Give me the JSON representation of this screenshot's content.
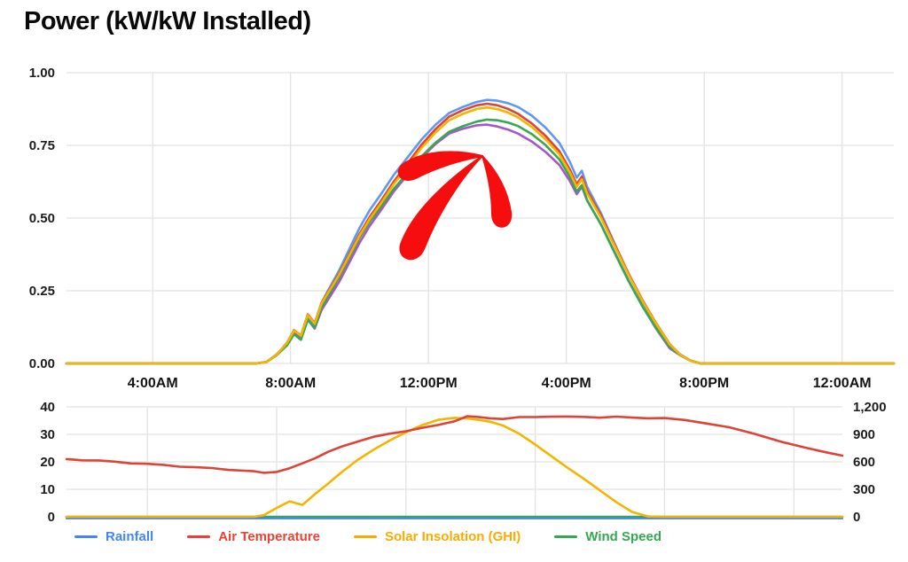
{
  "title": "Power (kW/kW Installed)",
  "colors": {
    "grid": "#e1e3e1",
    "arrow": "#f60d0d",
    "background": "#ffffff"
  },
  "x_axis": {
    "domain_hours": [
      1.5,
      25.5
    ],
    "ticks": [
      {
        "hour": 4,
        "label": "4:00AM"
      },
      {
        "hour": 8,
        "label": "8:00AM"
      },
      {
        "hour": 12,
        "label": "12:00PM"
      },
      {
        "hour": 16,
        "label": "4:00PM"
      },
      {
        "hour": 20,
        "label": "8:00PM"
      },
      {
        "hour": 24,
        "label": "12:00AM"
      }
    ]
  },
  "chart_data": [
    {
      "type": "line",
      "name": "power",
      "title": "Power (kW/kW Installed)",
      "ylim": [
        0,
        1.0
      ],
      "grid": true,
      "yticks": [
        {
          "value": 1.0,
          "label": "1.00"
        },
        {
          "value": 0.75,
          "label": "0.75"
        },
        {
          "value": 0.5,
          "label": "0.50"
        },
        {
          "value": 0.25,
          "label": "0.25"
        },
        {
          "value": 0.0,
          "label": "0.00"
        }
      ],
      "x_hours": [
        1.5,
        2,
        3,
        4,
        5,
        6,
        6.5,
        7,
        7.3,
        7.6,
        7.9,
        8.1,
        8.3,
        8.5,
        8.7,
        8.9,
        9.1,
        9.4,
        9.7,
        10,
        10.3,
        10.6,
        11,
        11.4,
        11.8,
        12.2,
        12.6,
        13,
        13.4,
        13.7,
        14,
        14.3,
        14.6,
        15,
        15.4,
        15.8,
        16.1,
        16.3,
        16.45,
        16.6,
        17,
        17.4,
        17.8,
        18.2,
        18.6,
        19,
        19.3,
        19.6,
        19.9,
        20.3,
        21,
        22,
        23,
        24.5,
        25.5
      ],
      "base_values": [
        0,
        0,
        0,
        0,
        0,
        0,
        0,
        0,
        0.005,
        0.03,
        0.07,
        0.11,
        0.09,
        0.16,
        0.13,
        0.2,
        0.24,
        0.3,
        0.37,
        0.44,
        0.5,
        0.55,
        0.62,
        0.68,
        0.74,
        0.79,
        0.83,
        0.85,
        0.865,
        0.87,
        0.865,
        0.855,
        0.84,
        0.81,
        0.77,
        0.72,
        0.66,
        0.61,
        0.635,
        0.585,
        0.5,
        0.4,
        0.3,
        0.21,
        0.13,
        0.06,
        0.03,
        0.01,
        0,
        0,
        0,
        0,
        0,
        0,
        0
      ],
      "series": [
        {
          "name": "power-blue",
          "color": "#5e97f6",
          "scale": 1.045,
          "peak": 0.91
        },
        {
          "name": "power-red",
          "color": "#db4437",
          "scale": 1.02,
          "peak": 0.89
        },
        {
          "name": "power-purple",
          "color": "#a855c8",
          "scale": 0.948,
          "peak": 0.82
        },
        {
          "name": "power-green",
          "color": "#34a853",
          "scale": 0.967,
          "peak": 0.84
        },
        {
          "name": "power-orange",
          "color": "#f5b400",
          "scale": 1.005,
          "peak": 0.87
        }
      ]
    },
    {
      "type": "line",
      "name": "weather",
      "left_axis": {
        "lim": [
          0,
          40
        ],
        "ticks": [
          {
            "value": 40,
            "label": "40"
          },
          {
            "value": 30,
            "label": "30"
          },
          {
            "value": 20,
            "label": "20"
          },
          {
            "value": 10,
            "label": "10"
          },
          {
            "value": 0,
            "label": "0"
          }
        ]
      },
      "right_axis": {
        "lim": [
          0,
          1200
        ],
        "ticks": [
          {
            "value": 1200,
            "label": "1,200"
          },
          {
            "value": 900,
            "label": "900"
          },
          {
            "value": 600,
            "label": "600"
          },
          {
            "value": 300,
            "label": "300"
          },
          {
            "value": 0,
            "label": "0"
          }
        ]
      },
      "x_hours": [
        1.5,
        2,
        2.5,
        3,
        3.5,
        4,
        4.5,
        5,
        5.5,
        6,
        6.5,
        7,
        7.3,
        7.6,
        8,
        8.4,
        8.8,
        9.2,
        9.6,
        10,
        10.5,
        11,
        11.5,
        12,
        12.5,
        13,
        13.5,
        13.9,
        14.2,
        14.6,
        15,
        15.5,
        16,
        16.5,
        17,
        17.5,
        18,
        18.5,
        19,
        19.5,
        20,
        20.6,
        21.2,
        22,
        22.8,
        23.6,
        24.4,
        25,
        25.5
      ],
      "series": [
        {
          "name": "Wind Speed",
          "color": "#34a853",
          "axis": "left",
          "constant": 0
        },
        {
          "name": "Rainfall",
          "color": "#4285f4",
          "axis": "left",
          "constant": 0
        },
        {
          "name": "Solar Insolation (GHI)",
          "color": "#f5b400",
          "axis": "right",
          "values": [
            0,
            0,
            0,
            0,
            0,
            0,
            0,
            0,
            0,
            0,
            0,
            0,
            0,
            20,
            90,
            160,
            130,
            260,
            370,
            480,
            610,
            730,
            840,
            930,
            1000,
            1050,
            1075,
            1080,
            1070,
            1040,
            990,
            900,
            790,
            670,
            540,
            410,
            280,
            160,
            60,
            10,
            0,
            0,
            0,
            0,
            0,
            0,
            0,
            0,
            0
          ]
        },
        {
          "name": "Air Temperature",
          "color": "#db4437",
          "axis": "left",
          "values": [
            21,
            20.7,
            20.4,
            20,
            19.6,
            19.2,
            18.8,
            18.4,
            18,
            17.6,
            17.2,
            16.8,
            16.4,
            16.1,
            16.4,
            17.5,
            19.5,
            21.5,
            23.5,
            25.5,
            27.5,
            29,
            30.2,
            31.3,
            32.3,
            33.3,
            34.9,
            36.6,
            36.2,
            36,
            35.6,
            36.1,
            36.4,
            36.5,
            36.3,
            36.4,
            36.2,
            36.3,
            36.1,
            36,
            35.8,
            35.2,
            34.3,
            32.5,
            30,
            27.5,
            25,
            23.3,
            22.4
          ]
        }
      ]
    }
  ],
  "legend": {
    "items": [
      {
        "label": "Rainfall",
        "color": "#4285f4"
      },
      {
        "label": "Air Temperature",
        "color": "#ea4335"
      },
      {
        "label": "Solar Insolation (GHI)",
        "color": "#f9ab00"
      },
      {
        "label": "Wind Speed",
        "color": "#34a853"
      }
    ]
  }
}
